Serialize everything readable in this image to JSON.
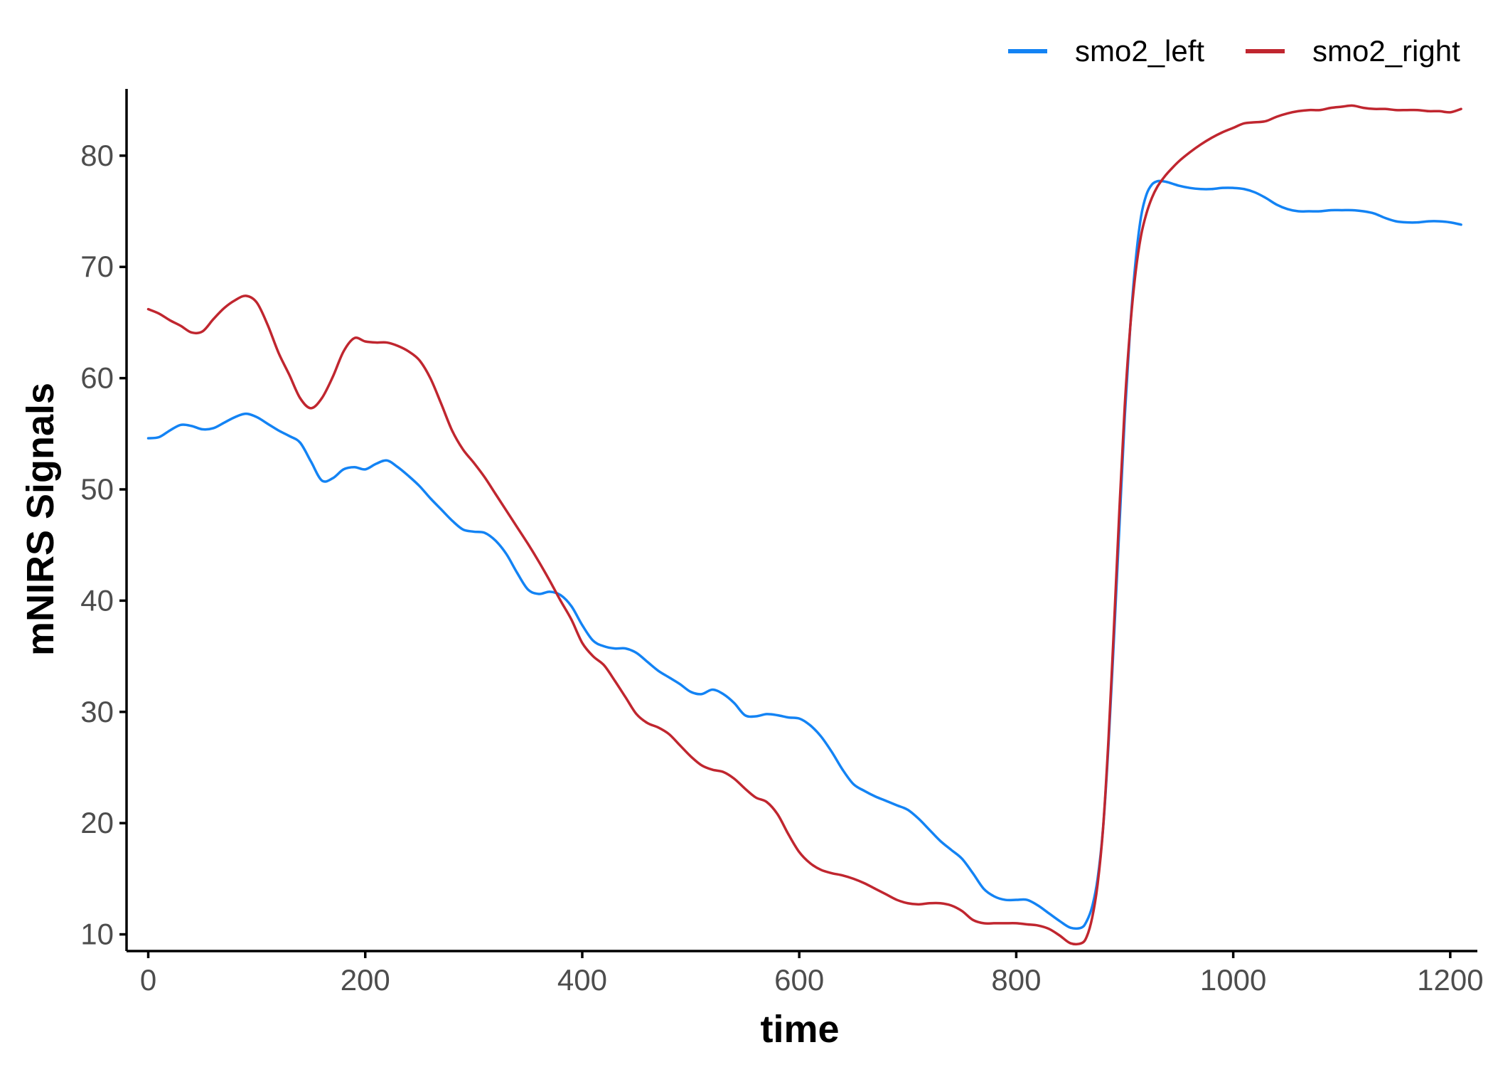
{
  "chart_data": {
    "type": "line",
    "title": "",
    "xlabel": "time",
    "ylabel": "mNIRS Signals",
    "xlim": [
      -20,
      1225
    ],
    "ylim": [
      8.5,
      86
    ],
    "x_ticks": [
      0,
      200,
      400,
      600,
      800,
      1000,
      1200
    ],
    "y_ticks": [
      10,
      20,
      30,
      40,
      50,
      60,
      70,
      80
    ],
    "grid": false,
    "legend_position": "top-right",
    "series": [
      {
        "name": "smo2_left",
        "color": "#1383f4",
        "x": [
          0,
          10,
          20,
          30,
          40,
          50,
          60,
          70,
          80,
          90,
          100,
          110,
          120,
          130,
          140,
          150,
          160,
          170,
          180,
          190,
          200,
          210,
          220,
          230,
          240,
          250,
          260,
          270,
          280,
          290,
          300,
          310,
          320,
          330,
          340,
          350,
          360,
          370,
          380,
          390,
          400,
          410,
          420,
          430,
          440,
          450,
          460,
          470,
          480,
          490,
          500,
          510,
          520,
          530,
          540,
          550,
          560,
          570,
          580,
          590,
          600,
          610,
          620,
          630,
          640,
          650,
          660,
          670,
          680,
          690,
          700,
          710,
          720,
          730,
          740,
          750,
          760,
          770,
          780,
          790,
          800,
          810,
          820,
          830,
          840,
          850,
          860,
          865,
          870,
          875,
          880,
          885,
          890,
          895,
          900,
          905,
          910,
          915,
          920,
          925,
          930,
          935,
          940,
          950,
          960,
          970,
          980,
          990,
          1000,
          1010,
          1020,
          1030,
          1040,
          1050,
          1060,
          1070,
          1080,
          1090,
          1100,
          1110,
          1120,
          1130,
          1140,
          1150,
          1160,
          1170,
          1180,
          1190,
          1200,
          1210
        ],
        "values": [
          54.6,
          54.7,
          55.3,
          55.8,
          55.7,
          55.4,
          55.5,
          56.0,
          56.5,
          56.8,
          56.5,
          55.9,
          55.3,
          54.8,
          54.2,
          52.5,
          50.8,
          51.0,
          51.8,
          52.0,
          51.8,
          52.3,
          52.6,
          52.0,
          51.2,
          50.3,
          49.2,
          48.2,
          47.2,
          46.4,
          46.2,
          46.1,
          45.4,
          44.2,
          42.5,
          41.0,
          40.6,
          40.8,
          40.5,
          39.5,
          37.8,
          36.4,
          35.9,
          35.7,
          35.7,
          35.3,
          34.5,
          33.7,
          33.1,
          32.5,
          31.8,
          31.6,
          32.0,
          31.6,
          30.8,
          29.7,
          29.6,
          29.8,
          29.7,
          29.5,
          29.4,
          28.8,
          27.8,
          26.4,
          24.8,
          23.5,
          22.9,
          22.4,
          22.0,
          21.6,
          21.2,
          20.4,
          19.4,
          18.4,
          17.6,
          16.8,
          15.5,
          14.1,
          13.4,
          13.1,
          13.1,
          13.1,
          12.6,
          11.9,
          11.2,
          10.6,
          10.6,
          11.2,
          12.5,
          15.0,
          19.5,
          27.0,
          36.5,
          46.5,
          56.5,
          64.5,
          70.5,
          74.5,
          76.5,
          77.4,
          77.7,
          77.7,
          77.6,
          77.3,
          77.1,
          77.0,
          77.0,
          77.1,
          77.1,
          77.0,
          76.7,
          76.2,
          75.6,
          75.2,
          75.0,
          75.0,
          75.0,
          75.1,
          75.1,
          75.1,
          75.0,
          74.8,
          74.4,
          74.1,
          74.0,
          74.0,
          74.1,
          74.1,
          74.0,
          73.8
        ]
      },
      {
        "name": "smo2_right",
        "color": "#c0262f",
        "x": [
          0,
          10,
          20,
          30,
          40,
          50,
          60,
          70,
          80,
          90,
          100,
          110,
          120,
          130,
          140,
          150,
          160,
          170,
          180,
          190,
          200,
          210,
          220,
          230,
          240,
          250,
          260,
          270,
          280,
          290,
          300,
          310,
          320,
          330,
          340,
          350,
          360,
          370,
          380,
          390,
          400,
          410,
          420,
          430,
          440,
          450,
          460,
          470,
          480,
          490,
          500,
          510,
          520,
          530,
          540,
          550,
          560,
          570,
          580,
          590,
          600,
          610,
          620,
          630,
          640,
          650,
          660,
          670,
          680,
          690,
          700,
          710,
          720,
          730,
          740,
          750,
          760,
          770,
          780,
          790,
          800,
          810,
          820,
          830,
          840,
          850,
          860,
          865,
          870,
          875,
          880,
          885,
          890,
          895,
          900,
          905,
          910,
          915,
          920,
          925,
          930,
          935,
          940,
          950,
          960,
          970,
          980,
          990,
          1000,
          1010,
          1020,
          1030,
          1040,
          1050,
          1060,
          1070,
          1080,
          1090,
          1100,
          1110,
          1120,
          1130,
          1140,
          1150,
          1160,
          1170,
          1180,
          1190,
          1200,
          1210
        ],
        "values": [
          66.2,
          65.8,
          65.2,
          64.7,
          64.1,
          64.2,
          65.3,
          66.3,
          67.0,
          67.4,
          66.8,
          64.8,
          62.3,
          60.3,
          58.2,
          57.3,
          58.2,
          60.1,
          62.4,
          63.6,
          63.3,
          63.2,
          63.2,
          62.9,
          62.4,
          61.6,
          60.0,
          57.7,
          55.3,
          53.6,
          52.4,
          51.1,
          49.6,
          48.1,
          46.6,
          45.1,
          43.5,
          41.8,
          40.0,
          38.3,
          36.2,
          35.0,
          34.2,
          32.8,
          31.3,
          29.8,
          29.0,
          28.6,
          28.0,
          27.0,
          26.0,
          25.2,
          24.8,
          24.6,
          24.0,
          23.1,
          22.3,
          21.9,
          20.8,
          19.0,
          17.4,
          16.4,
          15.8,
          15.5,
          15.3,
          15.0,
          14.6,
          14.1,
          13.6,
          13.1,
          12.8,
          12.7,
          12.8,
          12.8,
          12.6,
          12.1,
          11.3,
          11.0,
          11.0,
          11.0,
          11.0,
          10.9,
          10.8,
          10.5,
          9.9,
          9.2,
          9.2,
          9.8,
          11.5,
          14.5,
          19.5,
          27.5,
          37.5,
          48.0,
          57.5,
          64.5,
          69.5,
          72.8,
          74.8,
          76.2,
          77.2,
          77.9,
          78.5,
          79.5,
          80.3,
          81.0,
          81.6,
          82.1,
          82.5,
          82.9,
          83.0,
          83.1,
          83.5,
          83.8,
          84.0,
          84.1,
          84.1,
          84.3,
          84.4,
          84.5,
          84.3,
          84.2,
          84.2,
          84.1,
          84.1,
          84.1,
          84.0,
          84.0,
          83.9,
          84.2
        ]
      }
    ]
  }
}
